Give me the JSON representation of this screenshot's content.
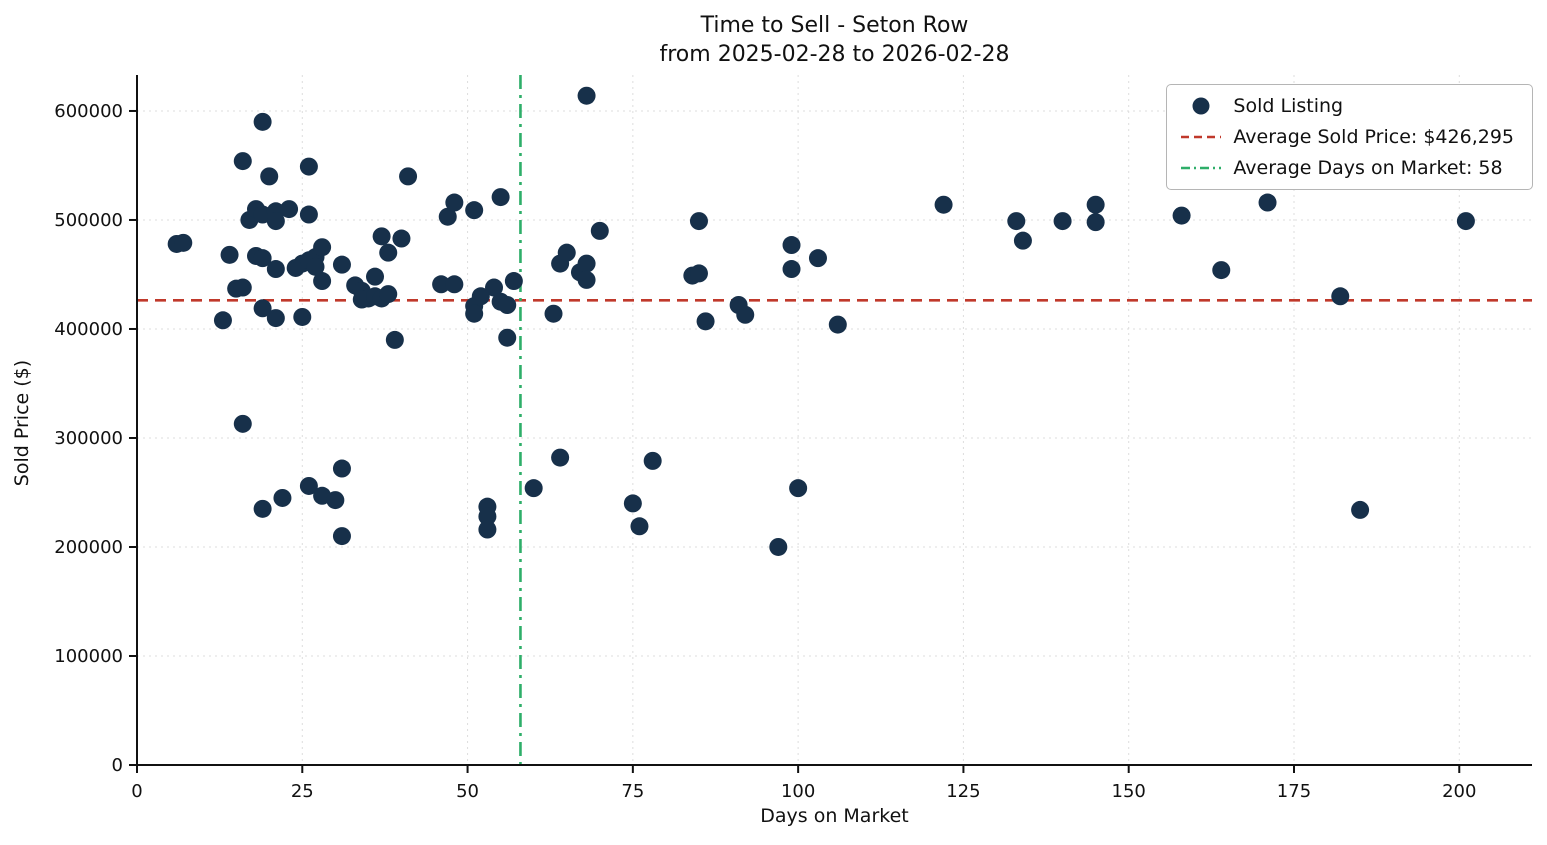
{
  "chart_data": {
    "type": "scatter",
    "title": "Time to Sell - Seton Row",
    "subtitle": "from 2025-02-28 to 2026-02-28",
    "xlabel": "Days on Market",
    "ylabel": "Sold Price ($)",
    "xlim": [
      0,
      211
    ],
    "ylim": [
      0,
      633000
    ],
    "xticks": [
      0,
      25,
      50,
      75,
      100,
      125,
      150,
      175,
      200
    ],
    "yticks": [
      0,
      100000,
      200000,
      300000,
      400000,
      500000,
      600000
    ],
    "grid": true,
    "legend_position": "upper right",
    "avg_sold_price": 426295,
    "avg_days_on_market": 58,
    "legend": {
      "sold": "Sold Listing",
      "avg_price": "Average Sold Price: $426,295",
      "avg_days": "Average Days on Market: 58"
    },
    "colors": {
      "point": "#17304a",
      "avg_price_line": "#c0392b",
      "avg_days_line": "#2eae69",
      "grid": "#dddddd",
      "axis": "#111111"
    },
    "points": [
      [
        6,
        478000
      ],
      [
        7,
        479000
      ],
      [
        13,
        408000
      ],
      [
        14,
        468000
      ],
      [
        15,
        437000
      ],
      [
        16,
        554000
      ],
      [
        16,
        438000
      ],
      [
        16,
        313000
      ],
      [
        17,
        500000
      ],
      [
        18,
        510000
      ],
      [
        18,
        467000
      ],
      [
        19,
        590000
      ],
      [
        19,
        505000
      ],
      [
        19,
        465000
      ],
      [
        19,
        419000
      ],
      [
        19,
        235000
      ],
      [
        20,
        540000
      ],
      [
        21,
        508000
      ],
      [
        21,
        499000
      ],
      [
        21,
        455000
      ],
      [
        21,
        410000
      ],
      [
        22,
        245000
      ],
      [
        23,
        510000
      ],
      [
        24,
        456000
      ],
      [
        25,
        460000
      ],
      [
        25,
        411000
      ],
      [
        26,
        549000
      ],
      [
        26,
        505000
      ],
      [
        26,
        463000
      ],
      [
        26,
        256000
      ],
      [
        27,
        466000
      ],
      [
        27,
        457000
      ],
      [
        28,
        475000
      ],
      [
        28,
        444000
      ],
      [
        28,
        247000
      ],
      [
        30,
        243000
      ],
      [
        31,
        459000
      ],
      [
        31,
        272000
      ],
      [
        31,
        210000
      ],
      [
        33,
        440000
      ],
      [
        34,
        435000
      ],
      [
        34,
        427000
      ],
      [
        35,
        428000
      ],
      [
        36,
        448000
      ],
      [
        36,
        430000
      ],
      [
        37,
        485000
      ],
      [
        37,
        428000
      ],
      [
        38,
        470000
      ],
      [
        38,
        432000
      ],
      [
        39,
        390000
      ],
      [
        40,
        483000
      ],
      [
        41,
        540000
      ],
      [
        46,
        441000
      ],
      [
        47,
        503000
      ],
      [
        48,
        516000
      ],
      [
        48,
        441000
      ],
      [
        51,
        509000
      ],
      [
        51,
        421000
      ],
      [
        51,
        414000
      ],
      [
        52,
        430000
      ],
      [
        53,
        237000
      ],
      [
        53,
        228000
      ],
      [
        53,
        216000
      ],
      [
        54,
        438000
      ],
      [
        55,
        521000
      ],
      [
        55,
        425000
      ],
      [
        56,
        422000
      ],
      [
        56,
        392000
      ],
      [
        57,
        444000
      ],
      [
        60,
        254000
      ],
      [
        63,
        414000
      ],
      [
        64,
        282000
      ],
      [
        64,
        460000
      ],
      [
        65,
        470000
      ],
      [
        67,
        452000
      ],
      [
        68,
        614000
      ],
      [
        68,
        460000
      ],
      [
        68,
        445000
      ],
      [
        70,
        490000
      ],
      [
        75,
        240000
      ],
      [
        76,
        219000
      ],
      [
        78,
        279000
      ],
      [
        84,
        449000
      ],
      [
        85,
        499000
      ],
      [
        85,
        451000
      ],
      [
        86,
        407000
      ],
      [
        91,
        422000
      ],
      [
        92,
        413000
      ],
      [
        97,
        200000
      ],
      [
        99,
        477000
      ],
      [
        99,
        455000
      ],
      [
        100,
        254000
      ],
      [
        103,
        465000
      ],
      [
        106,
        404000
      ],
      [
        122,
        514000
      ],
      [
        133,
        499000
      ],
      [
        134,
        481000
      ],
      [
        140,
        499000
      ],
      [
        145,
        514000
      ],
      [
        145,
        498000
      ],
      [
        158,
        504000
      ],
      [
        164,
        454000
      ],
      [
        171,
        516000
      ],
      [
        182,
        430000
      ],
      [
        185,
        234000
      ],
      [
        201,
        499000
      ]
    ]
  }
}
